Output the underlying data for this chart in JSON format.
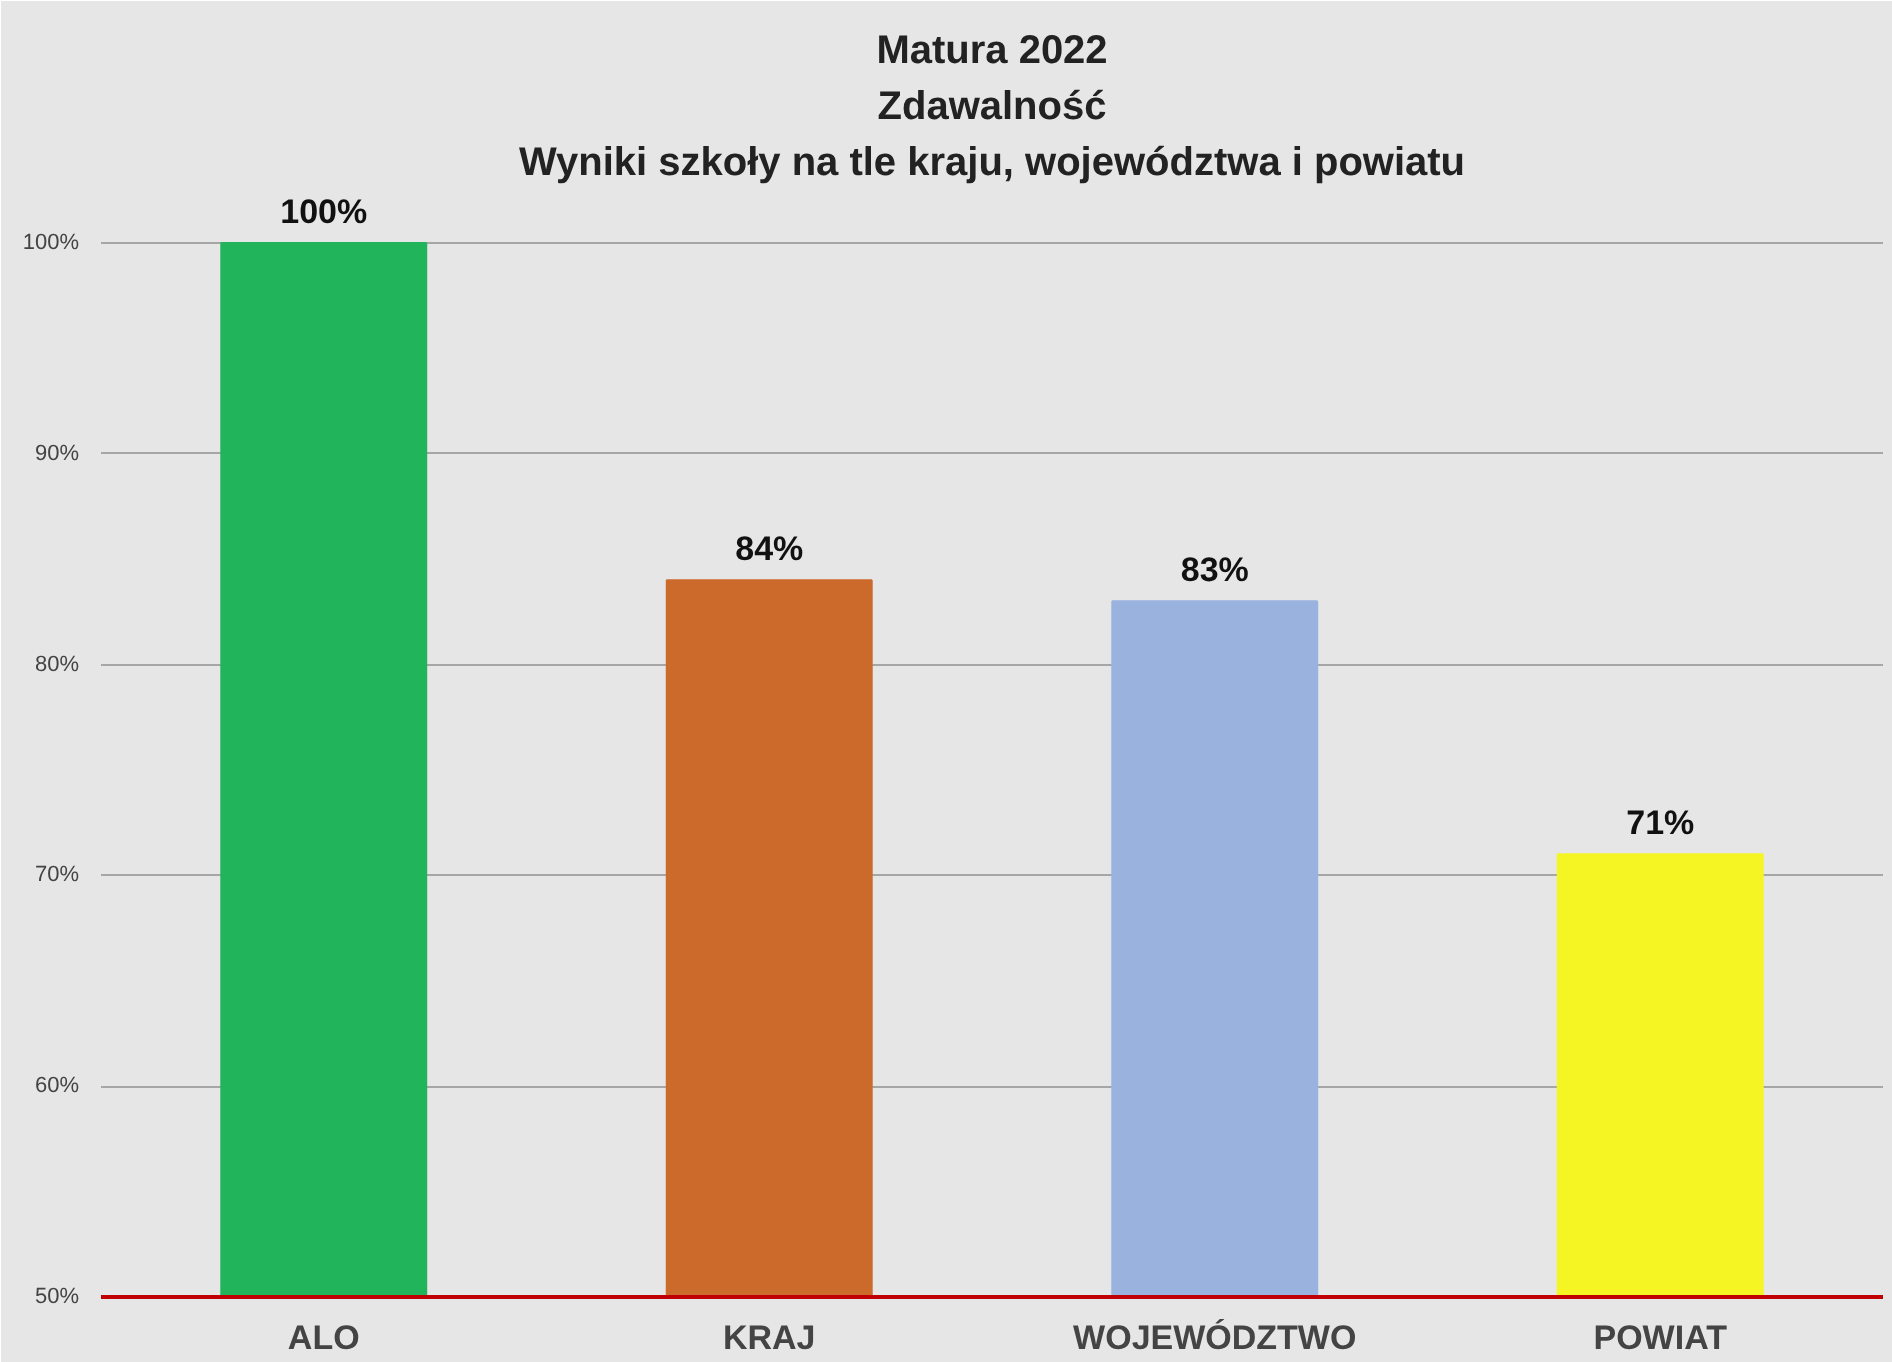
{
  "chart_data": {
    "type": "bar",
    "title": "Matura 2022",
    "subtitle": "Zdawalność\nWyniki szkoły na tle kraju, województwa i powiatu",
    "categories": [
      "ALO",
      "KRAJ",
      "WOJEWÓDZTWO",
      "POWIAT"
    ],
    "values": [
      100,
      84,
      83,
      71
    ],
    "colors": [
      "#22b45a",
      "#cc6a2c",
      "#9ab3de",
      "#f5f524"
    ],
    "value_labels": [
      "100%",
      "84%",
      "83%",
      "71%"
    ],
    "ylim": [
      50,
      111
    ],
    "yticks": [
      {
        "value": 50,
        "label": "50%"
      },
      {
        "value": 60,
        "label": "60%"
      },
      {
        "value": 70,
        "label": "70%"
      },
      {
        "value": 80,
        "label": "80%"
      },
      {
        "value": 90,
        "label": "90%"
      },
      {
        "value": 100,
        "label": "100%"
      }
    ],
    "grid": "y"
  }
}
